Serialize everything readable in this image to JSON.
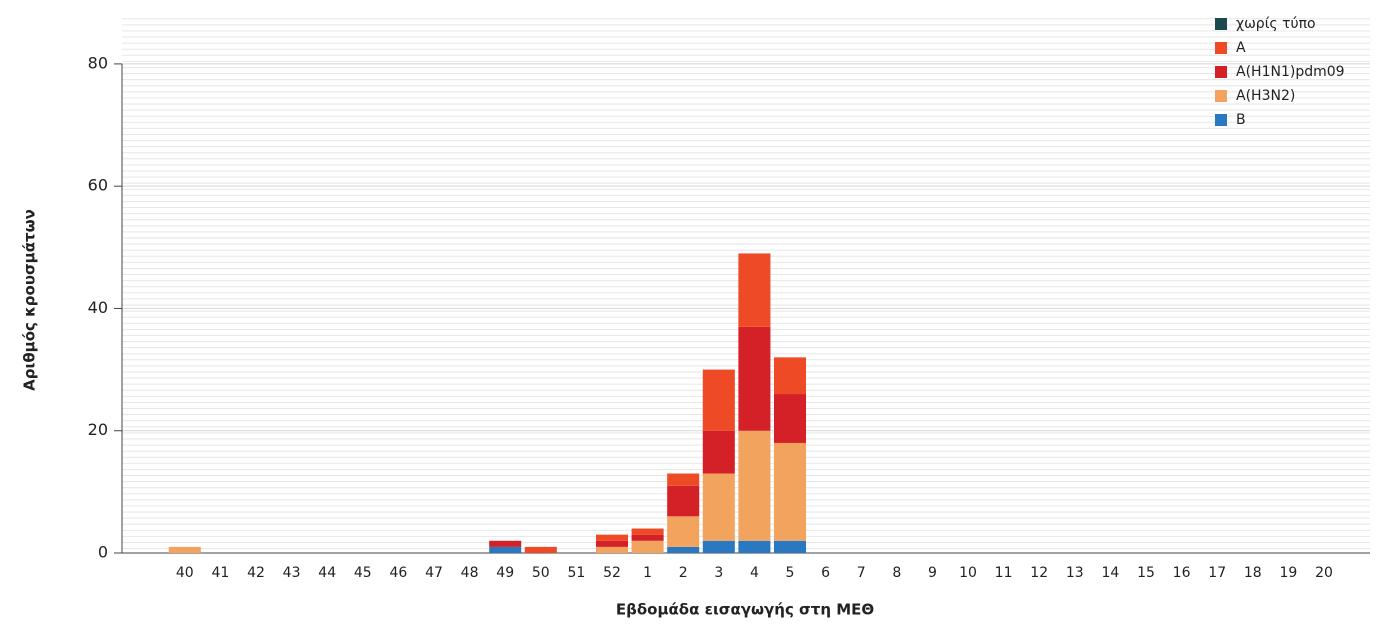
{
  "chart_data": {
    "type": "stacked_bar",
    "x_label": "Εβδομάδα εισαγωγής στη ΜΕΘ",
    "y_label": "Αριθμός κρουσμάτων",
    "categories": [
      "40",
      "41",
      "42",
      "43",
      "44",
      "45",
      "46",
      "47",
      "48",
      "49",
      "50",
      "51",
      "52",
      "1",
      "2",
      "3",
      "4",
      "5",
      "6",
      "7",
      "8",
      "9",
      "10",
      "11",
      "12",
      "13",
      "14",
      "15",
      "16",
      "17",
      "18",
      "19",
      "20"
    ],
    "series": [
      {
        "name": "χωρίς τύπο",
        "color": "#1d4a4f",
        "values": [
          0,
          0,
          0,
          0,
          0,
          0,
          0,
          0,
          0,
          0,
          0,
          0,
          0,
          0,
          0,
          0,
          0,
          0,
          0,
          0,
          0,
          0,
          0,
          0,
          0,
          0,
          0,
          0,
          0,
          0,
          0,
          0,
          0
        ]
      },
      {
        "name": "A",
        "color": "#ee4a25",
        "values": [
          0,
          0,
          0,
          0,
          0,
          0,
          0,
          0,
          0,
          0,
          1,
          0,
          1,
          1,
          2,
          10,
          12,
          6,
          0,
          0,
          0,
          0,
          0,
          0,
          0,
          0,
          0,
          0,
          0,
          0,
          0,
          0,
          0
        ]
      },
      {
        "name": "A(H1N1)pdm09",
        "color": "#d42027",
        "values": [
          0,
          0,
          0,
          0,
          0,
          0,
          0,
          0,
          0,
          1,
          0,
          0,
          1,
          1,
          5,
          7,
          17,
          8,
          0,
          0,
          0,
          0,
          0,
          0,
          0,
          0,
          0,
          0,
          0,
          0,
          0,
          0,
          0
        ]
      },
      {
        "name": "A(H3N2)",
        "color": "#f2a35e",
        "values": [
          1,
          0,
          0,
          0,
          0,
          0,
          0,
          0,
          0,
          0,
          0,
          0,
          1,
          2,
          5,
          11,
          18,
          16,
          0,
          0,
          0,
          0,
          0,
          0,
          0,
          0,
          0,
          0,
          0,
          0,
          0,
          0,
          0
        ]
      },
      {
        "name": "B",
        "color": "#2a78c2",
        "values": [
          0,
          0,
          0,
          0,
          0,
          0,
          0,
          0,
          0,
          1,
          0,
          0,
          0,
          0,
          1,
          2,
          2,
          2,
          0,
          0,
          0,
          0,
          0,
          0,
          0,
          0,
          0,
          0,
          0,
          0,
          0,
          0,
          0
        ]
      }
    ],
    "ylim": [
      0,
      88
    ],
    "yticks": [
      0,
      20,
      40,
      60,
      80
    ],
    "grid": true,
    "legend": "top-right"
  }
}
